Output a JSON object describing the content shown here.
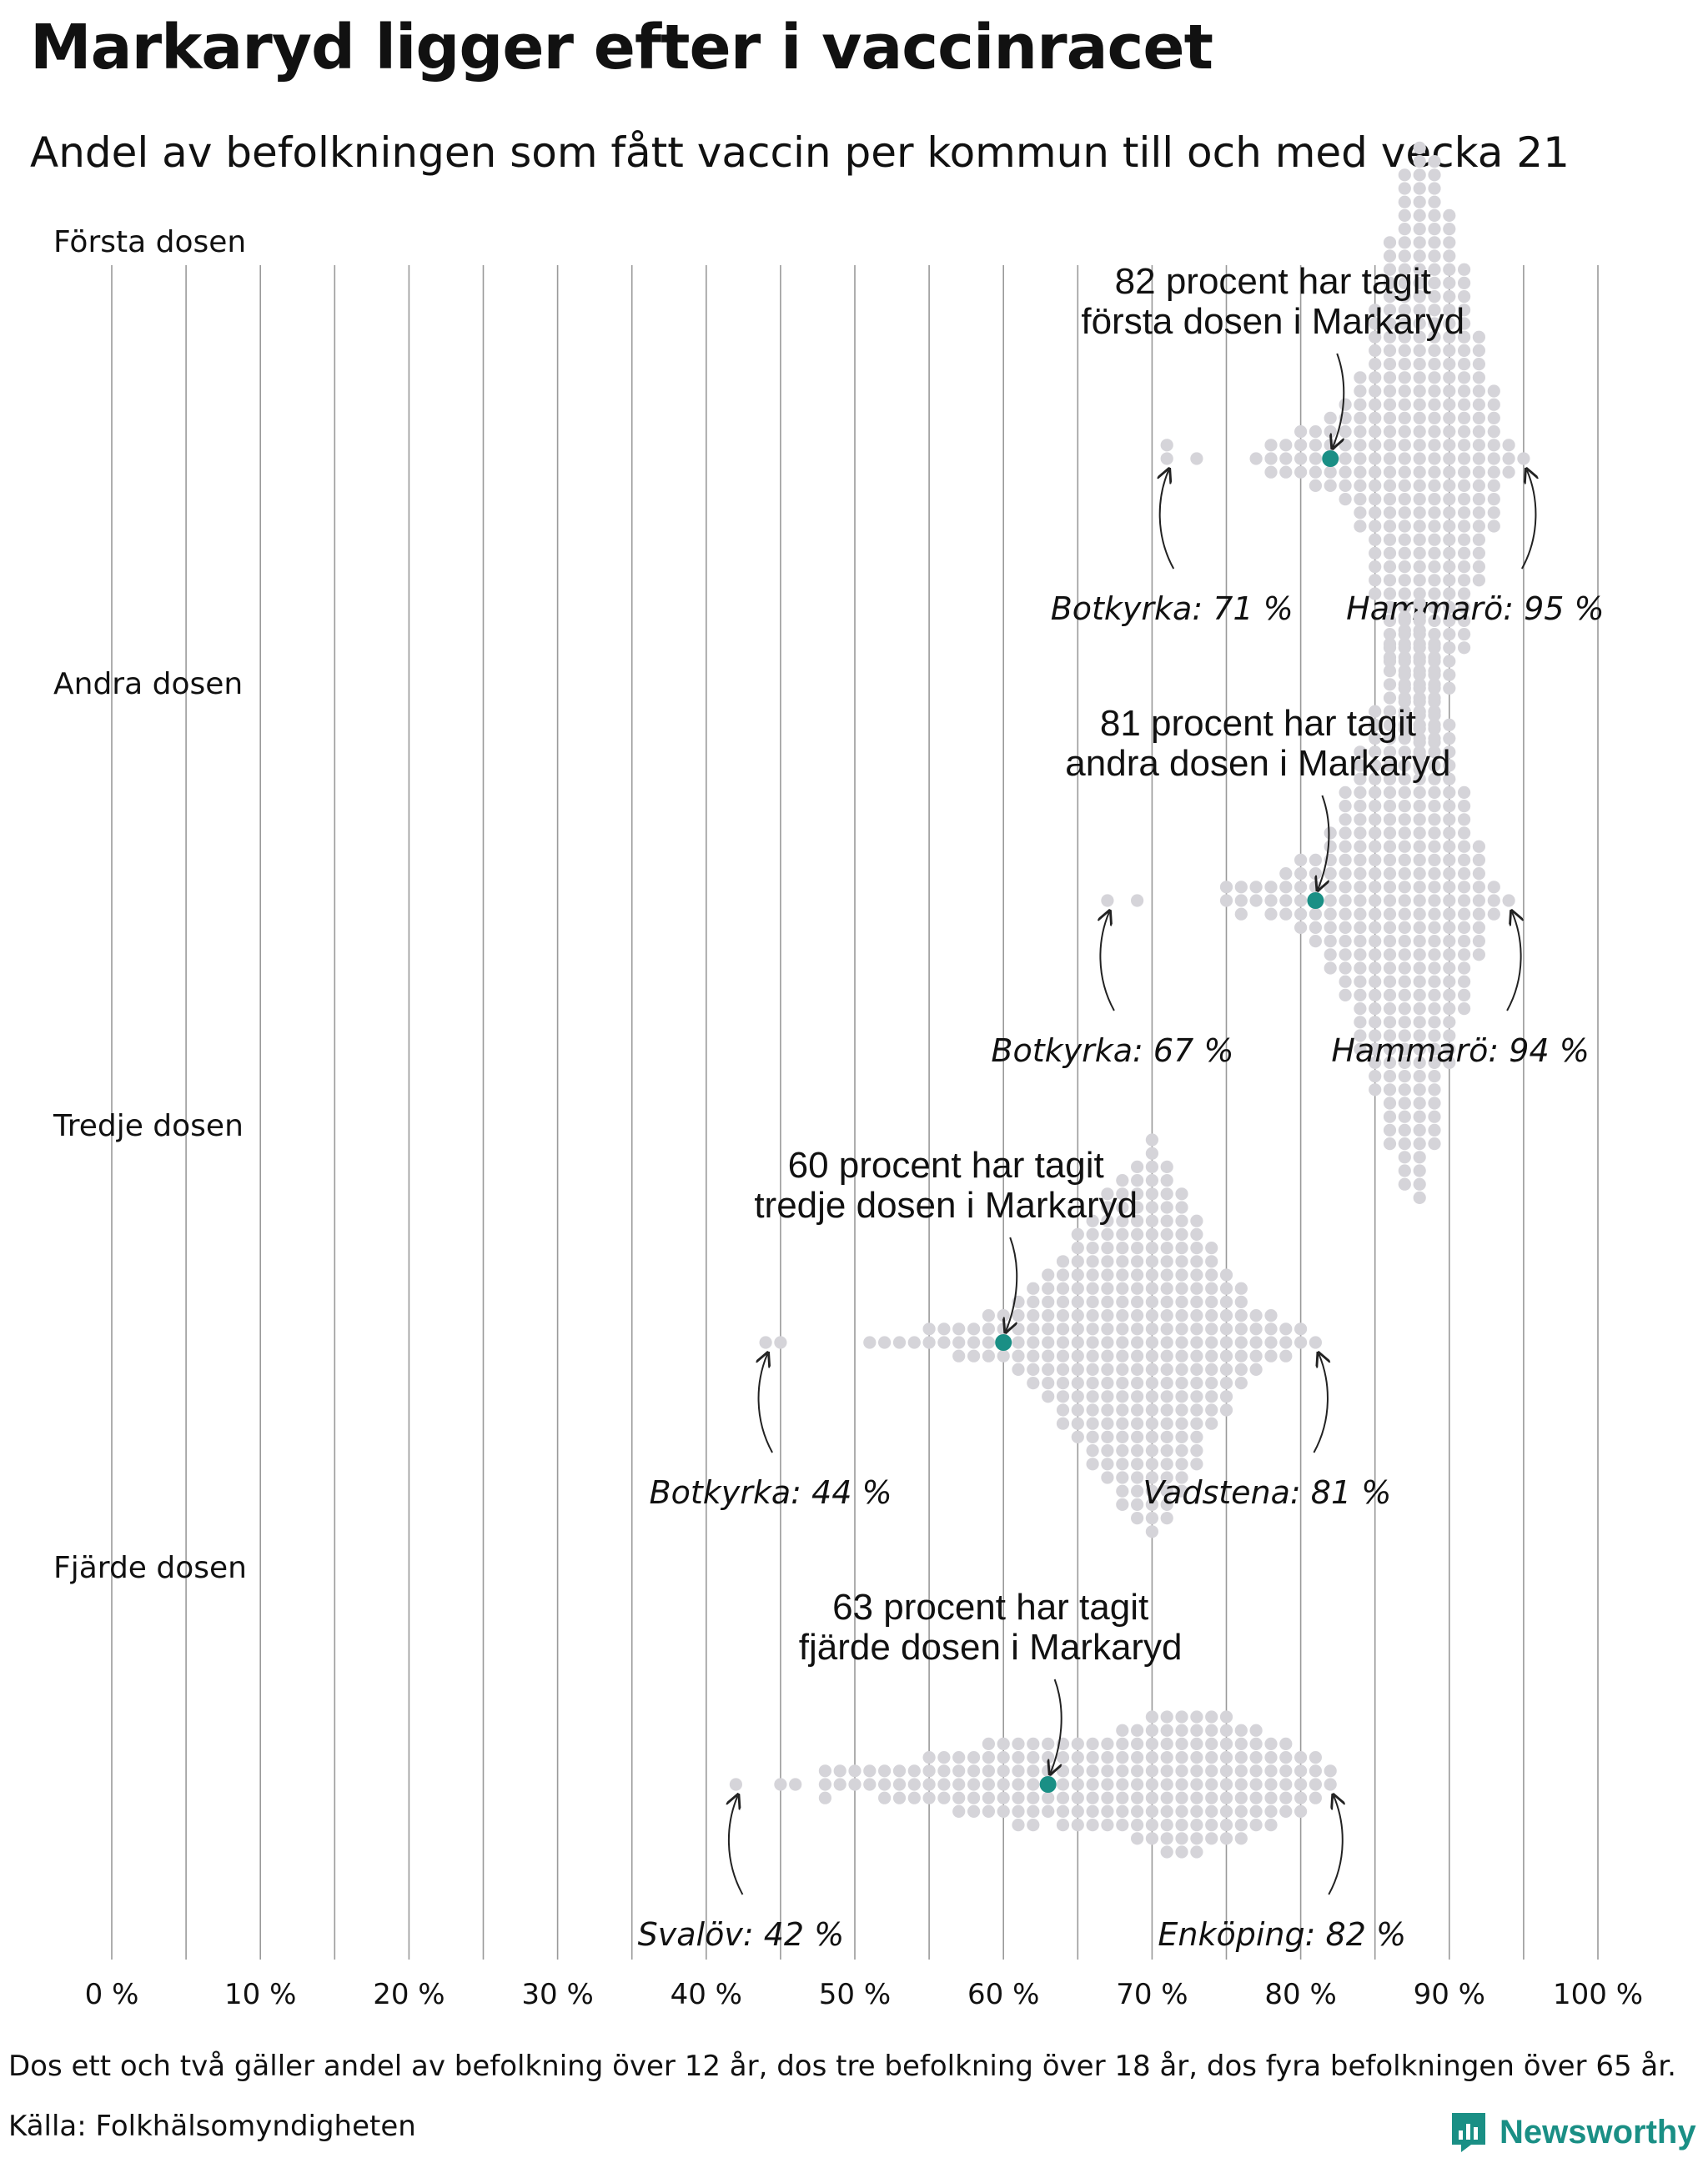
{
  "title": "Markaryd ligger efter i vaccinracet",
  "subtitle": "Andel av befolkningen som fått vaccin per kommun till och med vecka 21",
  "footnote": "Dos ett och två gäller andel av befolkning över 12 år, dos tre befolkning över 18 år, dos fyra befolkningen över 65 år.",
  "source": "Källa: Folkhälsomyndigheten",
  "brand": "Newsworthy",
  "colors": {
    "highlight": "#1a8f85",
    "dots": "#d5d4d9",
    "gridline": "#9a9a9a",
    "brand": "#1a8f85"
  },
  "chart_data": {
    "type": "scatter",
    "subtype": "beeswarm",
    "xlim": [
      0,
      100
    ],
    "x_ticks": [
      "0 %",
      "10 %",
      "20 %",
      "30 %",
      "40 %",
      "50 %",
      "60 %",
      "70 %",
      "80 %",
      "90 %",
      "100 %"
    ],
    "panels": [
      {
        "label": "Första dosen",
        "highlight": {
          "name": "Markaryd",
          "value": 82
        },
        "annotation_line1": "82 procent har tagit",
        "annotation_line2": "första dosen i Markaryd",
        "min": {
          "label": "Botkyrka: 71 %",
          "value": 71
        },
        "max": {
          "label": "Hammarö: 95 %",
          "value": 95
        },
        "values": [
          71,
          71,
          73,
          77,
          78,
          78,
          78,
          79,
          79,
          79,
          80,
          80,
          80,
          80,
          81,
          81,
          81,
          81,
          81,
          82,
          82,
          82,
          82,
          82,
          82,
          83,
          83,
          83,
          83,
          83,
          83,
          83,
          83,
          84,
          84,
          84,
          84,
          84,
          84,
          84,
          84,
          84,
          84,
          84,
          84,
          85,
          85,
          85,
          85,
          85,
          85,
          85,
          85,
          85,
          85,
          85,
          85,
          85,
          85,
          85,
          85,
          85,
          85,
          85,
          85,
          85,
          85,
          86,
          86,
          86,
          86,
          86,
          86,
          86,
          86,
          86,
          86,
          86,
          86,
          86,
          86,
          86,
          86,
          86,
          86,
          86,
          86,
          86,
          86,
          86,
          86,
          86,
          86,
          86,
          86,
          86,
          86,
          86,
          86,
          87,
          87,
          87,
          87,
          87,
          87,
          87,
          87,
          87,
          87,
          87,
          87,
          87,
          87,
          87,
          87,
          87,
          87,
          87,
          87,
          87,
          87,
          87,
          87,
          87,
          87,
          87,
          87,
          87,
          87,
          87,
          87,
          87,
          87,
          87,
          87,
          87,
          87,
          87,
          87,
          87,
          87,
          88,
          88,
          88,
          88,
          88,
          88,
          88,
          88,
          88,
          88,
          88,
          88,
          88,
          88,
          88,
          88,
          88,
          88,
          88,
          88,
          88,
          88,
          88,
          88,
          88,
          88,
          88,
          88,
          88,
          88,
          88,
          88,
          88,
          88,
          88,
          88,
          88,
          88,
          88,
          88,
          88,
          88,
          88,
          88,
          88,
          88,
          88,
          89,
          89,
          89,
          89,
          89,
          89,
          89,
          89,
          89,
          89,
          89,
          89,
          89,
          89,
          89,
          89,
          89,
          89,
          89,
          89,
          89,
          89,
          89,
          89,
          89,
          89,
          89,
          89,
          89,
          89,
          89,
          89,
          89,
          89,
          89,
          89,
          89,
          89,
          89,
          89,
          89,
          89,
          89,
          89,
          90,
          90,
          90,
          90,
          90,
          90,
          90,
          90,
          90,
          90,
          90,
          90,
          90,
          90,
          90,
          90,
          90,
          90,
          90,
          90,
          90,
          90,
          90,
          90,
          90,
          90,
          90,
          90,
          90,
          90,
          90,
          90,
          90,
          90,
          90,
          90,
          91,
          91,
          91,
          91,
          91,
          91,
          91,
          91,
          91,
          91,
          91,
          91,
          91,
          91,
          91,
          91,
          91,
          91,
          91,
          91,
          91,
          91,
          91,
          91,
          91,
          91,
          91,
          91,
          91,
          92,
          92,
          92,
          92,
          92,
          92,
          92,
          92,
          92,
          92,
          92,
          92,
          92,
          92,
          92,
          92,
          92,
          92,
          92,
          93,
          93,
          93,
          93,
          93,
          93,
          93,
          93,
          93,
          93,
          93,
          94,
          94,
          94,
          95
        ]
      },
      {
        "label": "Andra dosen",
        "highlight": {
          "name": "Markaryd",
          "value": 81
        },
        "annotation_line1": "81 procent har tagit",
        "annotation_line2": "andra dosen i Markaryd",
        "min": {
          "label": "Botkyrka: 67 %",
          "value": 67
        },
        "max": {
          "label": "Hammarö: 94 %",
          "value": 94
        },
        "values": [
          67,
          69,
          75,
          75,
          76,
          76,
          76,
          77,
          77,
          78,
          78,
          78,
          79,
          79,
          79,
          79,
          80,
          80,
          80,
          80,
          80,
          80,
          81,
          81,
          81,
          81,
          81,
          81,
          81,
          82,
          82,
          82,
          82,
          82,
          82,
          82,
          82,
          82,
          82,
          82,
          83,
          83,
          83,
          83,
          83,
          83,
          83,
          83,
          83,
          83,
          83,
          83,
          83,
          83,
          83,
          83,
          84,
          84,
          84,
          84,
          84,
          84,
          84,
          84,
          84,
          84,
          84,
          84,
          84,
          84,
          84,
          84,
          84,
          84,
          84,
          84,
          84,
          84,
          84,
          85,
          85,
          85,
          85,
          85,
          85,
          85,
          85,
          85,
          85,
          85,
          85,
          85,
          85,
          85,
          85,
          85,
          85,
          85,
          85,
          85,
          85,
          85,
          85,
          85,
          85,
          85,
          85,
          85,
          86,
          86,
          86,
          86,
          86,
          86,
          86,
          86,
          86,
          86,
          86,
          86,
          86,
          86,
          86,
          86,
          86,
          86,
          86,
          86,
          86,
          86,
          86,
          86,
          86,
          86,
          86,
          86,
          86,
          86,
          86,
          86,
          86,
          86,
          86,
          86,
          86,
          86,
          87,
          87,
          87,
          87,
          87,
          87,
          87,
          87,
          87,
          87,
          87,
          87,
          87,
          87,
          87,
          87,
          87,
          87,
          87,
          87,
          87,
          87,
          87,
          87,
          87,
          87,
          87,
          87,
          87,
          87,
          87,
          87,
          87,
          87,
          87,
          87,
          87,
          87,
          87,
          87,
          87,
          87,
          87,
          88,
          88,
          88,
          88,
          88,
          88,
          88,
          88,
          88,
          88,
          88,
          88,
          88,
          88,
          88,
          88,
          88,
          88,
          88,
          88,
          88,
          88,
          88,
          88,
          88,
          88,
          88,
          88,
          88,
          88,
          88,
          88,
          88,
          88,
          88,
          88,
          88,
          88,
          88,
          88,
          88,
          88,
          88,
          88,
          88,
          89,
          89,
          89,
          89,
          89,
          89,
          89,
          89,
          89,
          89,
          89,
          89,
          89,
          89,
          89,
          89,
          89,
          89,
          89,
          89,
          89,
          89,
          89,
          89,
          89,
          89,
          89,
          89,
          89,
          89,
          89,
          89,
          89,
          89,
          89,
          89,
          89,
          89,
          90,
          90,
          90,
          90,
          90,
          90,
          90,
          90,
          90,
          90,
          90,
          90,
          90,
          90,
          90,
          90,
          90,
          90,
          90,
          90,
          90,
          90,
          90,
          90,
          90,
          90,
          91,
          91,
          91,
          91,
          91,
          91,
          91,
          91,
          91,
          91,
          91,
          91,
          91,
          91,
          91,
          91,
          91,
          92,
          92,
          92,
          92,
          92,
          92,
          92,
          92,
          92,
          93,
          93,
          93,
          94
        ]
      },
      {
        "label": "Tredje dosen",
        "highlight": {
          "name": "Markaryd",
          "value": 60
        },
        "annotation_line1": "60 procent har tagit",
        "annotation_line2": "tredje dosen i Markaryd",
        "min": {
          "label": "Botkyrka: 44 %",
          "value": 44
        },
        "max": {
          "label": "Vadstena: 81 %",
          "value": 81
        },
        "values": [
          44,
          45,
          51,
          52,
          53,
          54,
          55,
          55,
          56,
          56,
          57,
          57,
          57,
          58,
          58,
          58,
          59,
          59,
          59,
          59,
          60,
          60,
          60,
          60,
          61,
          61,
          61,
          61,
          61,
          61,
          62,
          62,
          62,
          62,
          62,
          62,
          62,
          62,
          63,
          63,
          63,
          63,
          63,
          63,
          63,
          63,
          63,
          63,
          64,
          64,
          64,
          64,
          64,
          64,
          64,
          64,
          64,
          64,
          64,
          64,
          64,
          65,
          65,
          65,
          65,
          65,
          65,
          65,
          65,
          65,
          65,
          65,
          65,
          65,
          65,
          65,
          65,
          66,
          66,
          66,
          66,
          66,
          66,
          66,
          66,
          66,
          66,
          66,
          66,
          66,
          66,
          66,
          66,
          66,
          66,
          66,
          67,
          67,
          67,
          67,
          67,
          67,
          67,
          67,
          67,
          67,
          67,
          67,
          67,
          67,
          67,
          67,
          67,
          67,
          67,
          67,
          67,
          67,
          68,
          68,
          68,
          68,
          68,
          68,
          68,
          68,
          68,
          68,
          68,
          68,
          68,
          68,
          68,
          68,
          68,
          68,
          68,
          68,
          68,
          68,
          68,
          68,
          68,
          69,
          69,
          69,
          69,
          69,
          69,
          69,
          69,
          69,
          69,
          69,
          69,
          69,
          69,
          69,
          69,
          69,
          69,
          69,
          69,
          69,
          69,
          69,
          69,
          69,
          69,
          69,
          70,
          70,
          70,
          70,
          70,
          70,
          70,
          70,
          70,
          70,
          70,
          70,
          70,
          70,
          70,
          70,
          70,
          70,
          70,
          70,
          70,
          70,
          70,
          70,
          70,
          70,
          70,
          70,
          70,
          70,
          71,
          71,
          71,
          71,
          71,
          71,
          71,
          71,
          71,
          71,
          71,
          71,
          71,
          71,
          71,
          71,
          71,
          71,
          71,
          71,
          71,
          71,
          71,
          71,
          71,
          71,
          71,
          72,
          72,
          72,
          72,
          72,
          72,
          72,
          72,
          72,
          72,
          72,
          72,
          72,
          72,
          72,
          72,
          72,
          72,
          72,
          72,
          72,
          72,
          72,
          73,
          73,
          73,
          73,
          73,
          73,
          73,
          73,
          73,
          73,
          73,
          73,
          73,
          73,
          73,
          73,
          73,
          73,
          73,
          74,
          74,
          74,
          74,
          74,
          74,
          74,
          74,
          74,
          74,
          74,
          74,
          74,
          74,
          75,
          75,
          75,
          75,
          75,
          75,
          75,
          75,
          75,
          75,
          75,
          76,
          76,
          76,
          76,
          76,
          76,
          76,
          76,
          77,
          77,
          77,
          77,
          77,
          78,
          78,
          78,
          78,
          79,
          79,
          79,
          80,
          80,
          81
        ]
      },
      {
        "label": "Fjärde dosen",
        "highlight": {
          "name": "Markaryd",
          "value": 63
        },
        "annotation_line1": "63 procent har tagit",
        "annotation_line2": "fjärde dosen i Markaryd",
        "min": {
          "label": "Svalöv: 42 %",
          "value": 42
        },
        "max": {
          "label": "Enköping: 82 %",
          "value": 82
        },
        "values": [
          42,
          45,
          46,
          48,
          48,
          48,
          49,
          49,
          50,
          50,
          51,
          51,
          52,
          52,
          52,
          53,
          53,
          53,
          54,
          54,
          54,
          55,
          55,
          55,
          55,
          56,
          56,
          56,
          56,
          57,
          57,
          57,
          57,
          57,
          58,
          58,
          58,
          58,
          58,
          59,
          59,
          59,
          59,
          59,
          59,
          60,
          60,
          60,
          60,
          60,
          60,
          61,
          61,
          61,
          61,
          61,
          61,
          61,
          62,
          62,
          62,
          62,
          62,
          62,
          62,
          63,
          63,
          63,
          63,
          63,
          63,
          64,
          64,
          64,
          64,
          64,
          64,
          64,
          65,
          65,
          65,
          65,
          65,
          65,
          65,
          66,
          66,
          66,
          66,
          66,
          66,
          66,
          67,
          67,
          67,
          67,
          67,
          67,
          67,
          68,
          68,
          68,
          68,
          68,
          68,
          68,
          68,
          69,
          69,
          69,
          69,
          69,
          69,
          69,
          69,
          69,
          70,
          70,
          70,
          70,
          70,
          70,
          70,
          70,
          70,
          70,
          71,
          71,
          71,
          71,
          71,
          71,
          71,
          71,
          71,
          71,
          71,
          72,
          72,
          72,
          72,
          72,
          72,
          72,
          72,
          72,
          72,
          72,
          73,
          73,
          73,
          73,
          73,
          73,
          73,
          73,
          73,
          73,
          73,
          74,
          74,
          74,
          74,
          74,
          74,
          74,
          74,
          74,
          74,
          75,
          75,
          75,
          75,
          75,
          75,
          75,
          75,
          75,
          75,
          76,
          76,
          76,
          76,
          76,
          76,
          76,
          76,
          76,
          77,
          77,
          77,
          77,
          77,
          77,
          77,
          77,
          78,
          78,
          78,
          78,
          78,
          78,
          78,
          79,
          79,
          79,
          79,
          79,
          79,
          80,
          80,
          80,
          80,
          80,
          81,
          81,
          81,
          81,
          82,
          82
        ]
      }
    ]
  }
}
